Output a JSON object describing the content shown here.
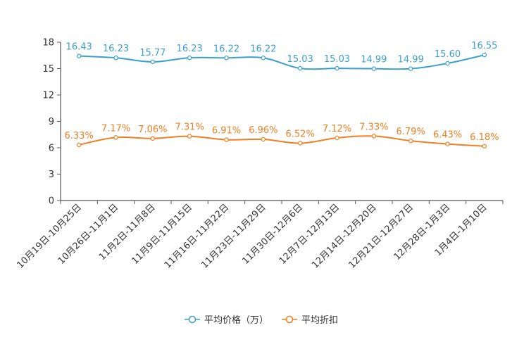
{
  "chart_data": {
    "type": "line",
    "title": "",
    "xlabel": "",
    "ylabel": "",
    "ylim": [
      0,
      18
    ],
    "yticks": [
      0,
      3,
      6,
      9,
      12,
      15,
      18
    ],
    "grid": false,
    "legend_position": "bottom-center",
    "categories": [
      "10月19日-10月25日",
      "10月26日-11月1日",
      "11月2日-11月8日",
      "11月9日-11月15日",
      "11月16日-11月22日",
      "11月23日-11月29日",
      "11月30日-12月6日",
      "12月7日-12月13日",
      "12月14日-12月20日",
      "12月21日-12月27日",
      "12月28日-1月3日",
      "1月4日-1月10日"
    ],
    "series": [
      {
        "name": "平均价格（万）",
        "color": "#3c9fd1",
        "values": [
          16.43,
          16.23,
          15.77,
          16.23,
          16.22,
          16.22,
          15.03,
          15.03,
          14.99,
          14.99,
          15.6,
          16.55
        ],
        "labels": [
          "16.43",
          "16.23",
          "15.77",
          "16.23",
          "16.22",
          "16.22",
          "15.03",
          "15.03",
          "14.99",
          "14.99",
          "15.60",
          "16.55"
        ]
      },
      {
        "name": "平均折扣",
        "color": "#f07f21",
        "values": [
          6.33,
          7.17,
          7.06,
          7.31,
          6.91,
          6.96,
          6.52,
          7.12,
          7.33,
          6.79,
          6.43,
          6.18
        ],
        "labels": [
          "6.33%",
          "7.17%",
          "7.06%",
          "7.31%",
          "6.91%",
          "6.96%",
          "6.52%",
          "7.12%",
          "7.33%",
          "6.79%",
          "6.43%",
          "6.18%"
        ]
      }
    ]
  }
}
